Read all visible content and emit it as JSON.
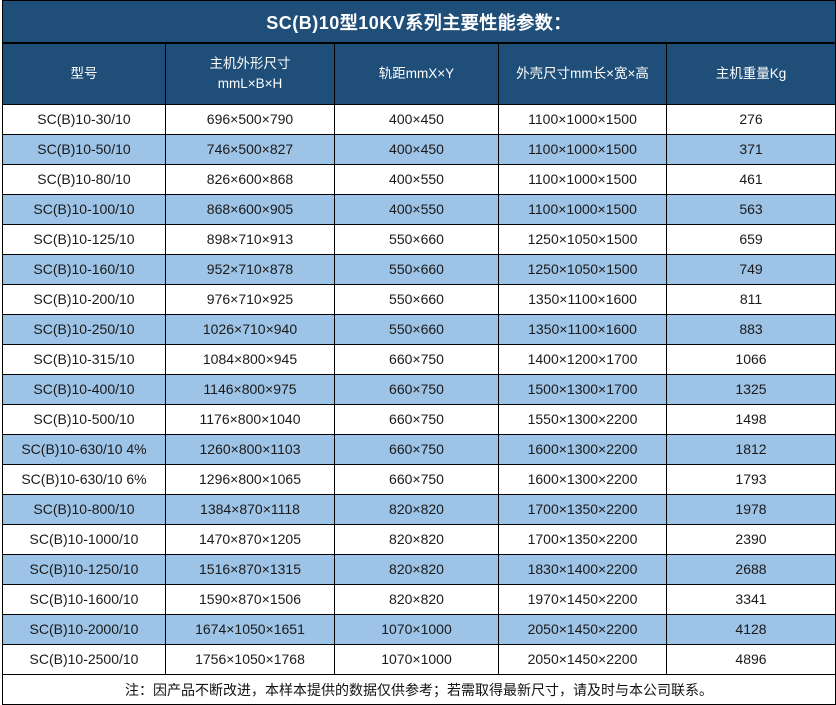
{
  "title": "SC(B)10型10KV系列主要性能参数：",
  "colors": {
    "header_bg": "#1f4e79",
    "stripe_bg": "#9dc3e6",
    "row_bg": "#ffffff",
    "border": "#000000",
    "header_text": "#ffffff",
    "body_text": "#1a1a1a"
  },
  "table": {
    "headers": [
      "型号",
      "主机外形尺寸\nmmL×B×H",
      "轨距mmX×Y",
      "外壳尺寸mm长×宽×高",
      "主机重量Kg"
    ],
    "rows": [
      [
        "SC(B)10-30/10",
        "696×500×790",
        "400×450",
        "1100×1000×1500",
        "276"
      ],
      [
        "SC(B)10-50/10",
        "746×500×827",
        "400×450",
        "1100×1000×1500",
        "371"
      ],
      [
        "SC(B)10-80/10",
        "826×600×868",
        "400×550",
        "1100×1000×1500",
        "461"
      ],
      [
        "SC(B)10-100/10",
        "868×600×905",
        "400×550",
        "1100×1000×1500",
        "563"
      ],
      [
        "SC(B)10-125/10",
        "898×710×913",
        "550×660",
        "1250×1050×1500",
        "659"
      ],
      [
        "SC(B)10-160/10",
        "952×710×878",
        "550×660",
        "1250×1050×1500",
        "749"
      ],
      [
        "SC(B)10-200/10",
        "976×710×925",
        "550×660",
        "1350×1100×1600",
        "811"
      ],
      [
        "SC(B)10-250/10",
        "1026×710×940",
        "550×660",
        "1350×1100×1600",
        "883"
      ],
      [
        "SC(B)10-315/10",
        "1084×800×945",
        "660×750",
        "1400×1200×1700",
        "1066"
      ],
      [
        "SC(B)10-400/10",
        "1146×800×975",
        "660×750",
        "1500×1300×1700",
        "1325"
      ],
      [
        "SC(B)10-500/10",
        "1176×800×1040",
        "660×750",
        "1550×1300×2200",
        "1498"
      ],
      [
        "SC(B)10-630/10 4%",
        "1260×800×1103",
        "660×750",
        "1600×1300×2200",
        "1812"
      ],
      [
        "SC(B)10-630/10 6%",
        "1296×800×1065",
        "660×750",
        "1600×1300×2200",
        "1793"
      ],
      [
        "SC(B)10-800/10",
        "1384×870×1118",
        "820×820",
        "1700×1350×2200",
        "1978"
      ],
      [
        "SC(B)10-1000/10",
        "1470×870×1205",
        "820×820",
        "1700×1350×2200",
        "2390"
      ],
      [
        "SC(B)10-1250/10",
        "1516×870×1315",
        "820×820",
        "1830×1400×2200",
        "2688"
      ],
      [
        "SC(B)10-1600/10",
        "1590×870×1506",
        "820×820",
        "1970×1450×2200",
        "3341"
      ],
      [
        "SC(B)10-2000/10",
        "1674×1050×1651",
        "1070×1000",
        "2050×1450×2200",
        "4128"
      ],
      [
        "SC(B)10-2500/10",
        "1756×1050×1768",
        "1070×1000",
        "2050×1450×2200",
        "4896"
      ]
    ]
  },
  "note": "注：因产品不断改进，本样本提供的数据仅供参考；若需取得最新尺寸，请及时与本公司联系。"
}
